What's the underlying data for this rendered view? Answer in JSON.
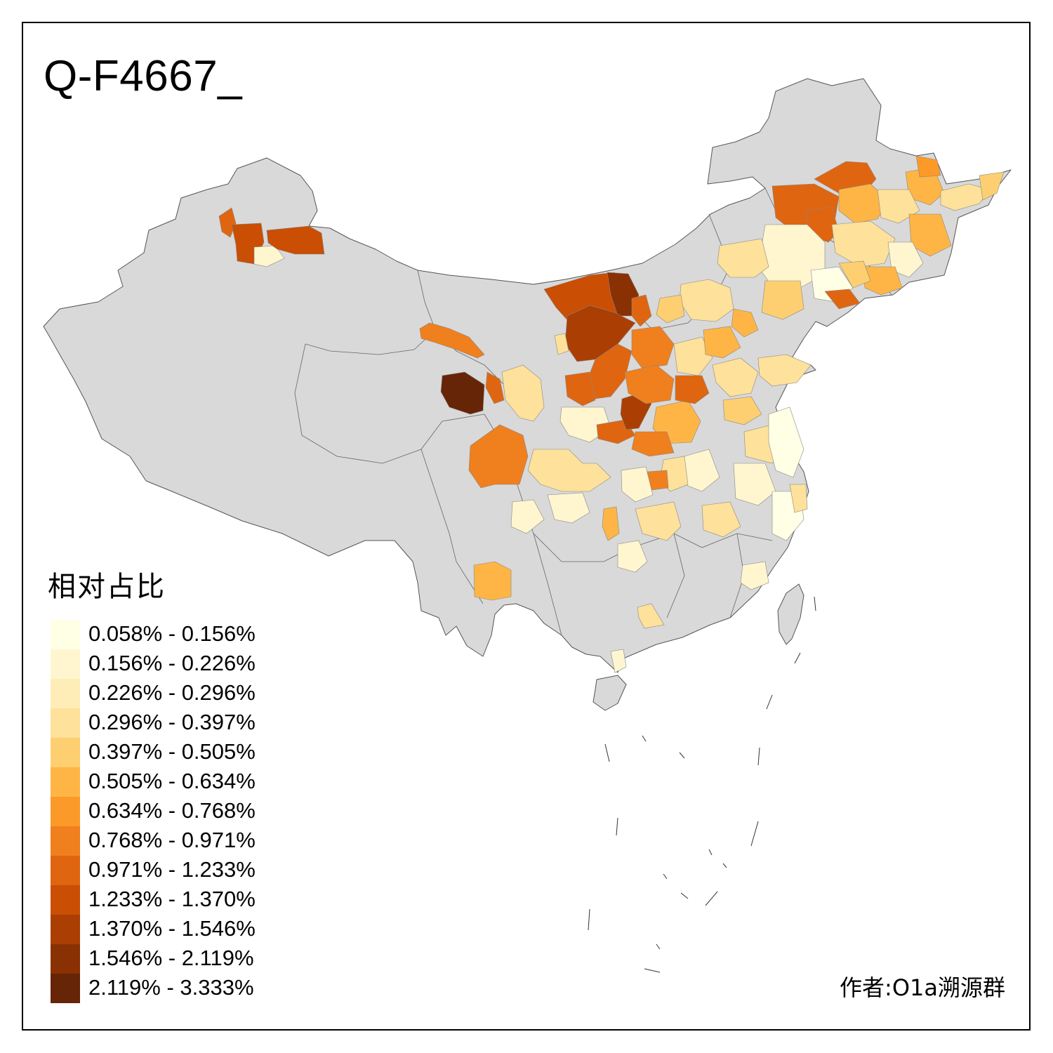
{
  "title": "Q-F4667_",
  "legend": {
    "title": "相对占比",
    "items": [
      {
        "label": "0.058% - 0.156%",
        "color": "#FFFFE5"
      },
      {
        "label": "0.156% - 0.226%",
        "color": "#FFF6CF"
      },
      {
        "label": "0.226% - 0.296%",
        "color": "#FEEDB6"
      },
      {
        "label": "0.296% - 0.397%",
        "color": "#FEE19A"
      },
      {
        "label": "0.397% - 0.505%",
        "color": "#FECF70"
      },
      {
        "label": "0.505% - 0.634%",
        "color": "#FEB545"
      },
      {
        "label": "0.634% - 0.768%",
        "color": "#FB9A29"
      },
      {
        "label": "0.768% - 0.971%",
        "color": "#F07F1E"
      },
      {
        "label": "0.971% - 1.233%",
        "color": "#E06510"
      },
      {
        "label": "1.233% - 1.370%",
        "color": "#CA4E04"
      },
      {
        "label": "1.370% - 1.546%",
        "color": "#AB3F03"
      },
      {
        "label": "1.546% - 2.119%",
        "color": "#8A3104"
      },
      {
        "label": "2.119% - 3.333%",
        "color": "#662506"
      }
    ]
  },
  "author": "作者:O1a溯源群",
  "base_color": "#D9D9D9"
}
